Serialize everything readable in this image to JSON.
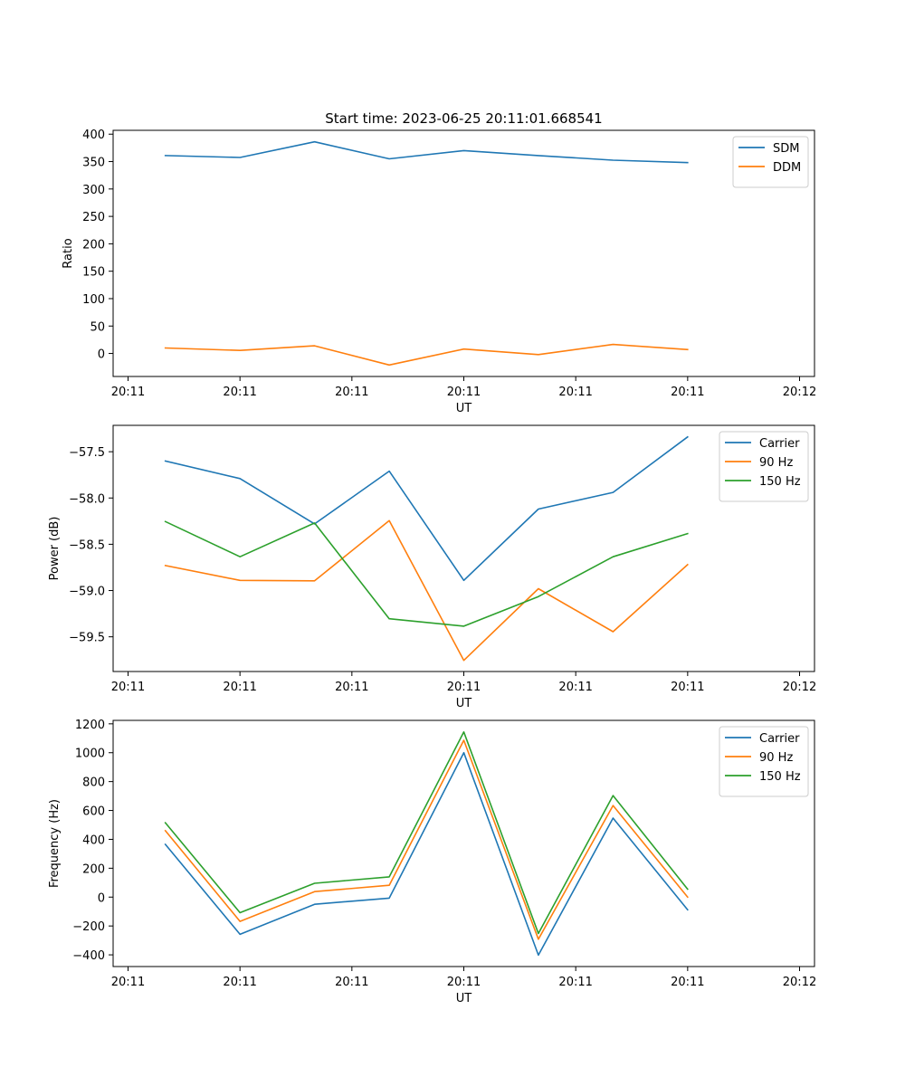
{
  "figure": {
    "title": "Start time: 2023-06-25 20:11:01.668541"
  },
  "chart_data": [
    {
      "type": "line",
      "xlabel": "UT",
      "ylabel": "Ratio",
      "x_tick_labels": [
        "20:11",
        "20:11",
        "20:11",
        "20:11",
        "20:11",
        "20:11",
        "20:12"
      ],
      "y_ticks": [
        0,
        50,
        100,
        150,
        200,
        250,
        300,
        350,
        400
      ],
      "ylim": [
        -42,
        407
      ],
      "xlim": [
        -0.2,
        9.2
      ],
      "x": [
        0.5,
        1.5,
        2.5,
        3.5,
        4.5,
        5.5,
        6.5,
        7.5
      ],
      "legend_position": "top-right",
      "series": [
        {
          "name": "SDM",
          "color": "#1f77b4",
          "values": [
            361,
            357.5,
            386,
            355,
            370,
            361,
            352.5,
            348
          ]
        },
        {
          "name": "DDM",
          "color": "#ff7f0e",
          "values": [
            10,
            5.5,
            14,
            -21,
            8,
            -2,
            16.5,
            7
          ]
        }
      ]
    },
    {
      "type": "line",
      "xlabel": "UT",
      "ylabel": "Power (dB)",
      "x_tick_labels": [
        "20:11",
        "20:11",
        "20:11",
        "20:11",
        "20:11",
        "20:11",
        "20:12"
      ],
      "y_ticks": [
        -59.5,
        -59.0,
        -58.5,
        -58.0,
        -57.5
      ],
      "y_tick_labels": [
        "−59.5",
        "−59.0",
        "−58.5",
        "−58.0",
        "−57.5"
      ],
      "ylim": [
        -59.875,
        -57.215
      ],
      "xlim": [
        -0.2,
        9.2
      ],
      "x": [
        0.5,
        1.5,
        2.5,
        3.5,
        4.5,
        5.5,
        6.5,
        7.5
      ],
      "legend_position": "top-right",
      "series": [
        {
          "name": "Carrier",
          "color": "#1f77b4",
          "values": [
            -57.6,
            -57.79,
            -58.28,
            -57.71,
            -58.89,
            -58.12,
            -57.94,
            -57.34
          ]
        },
        {
          "name": "90 Hz",
          "color": "#ff7f0e",
          "values": [
            -58.73,
            -58.89,
            -58.895,
            -58.245,
            -59.755,
            -58.98,
            -59.445,
            -58.72
          ]
        },
        {
          "name": "150 Hz",
          "color": "#2ca02c",
          "values": [
            -58.255,
            -58.635,
            -58.27,
            -59.305,
            -59.385,
            -59.065,
            -58.635,
            -58.385
          ]
        }
      ]
    },
    {
      "type": "line",
      "xlabel": "UT",
      "ylabel": "Frequency (Hz)",
      "x_tick_labels": [
        "20:11",
        "20:11",
        "20:11",
        "20:11",
        "20:11",
        "20:11",
        "20:12"
      ],
      "y_ticks": [
        -400,
        -200,
        0,
        200,
        400,
        600,
        800,
        1000,
        1200
      ],
      "y_tick_labels": [
        "−400",
        "−200",
        "0",
        "200",
        "400",
        "600",
        "800",
        "1000",
        "1200"
      ],
      "ylim": [
        -481,
        1224
      ],
      "xlim": [
        -0.2,
        9.2
      ],
      "x": [
        0.5,
        1.5,
        2.5,
        3.5,
        4.5,
        5.5,
        6.5,
        7.5
      ],
      "legend_position": "top-right",
      "series": [
        {
          "name": "Carrier",
          "color": "#1f77b4",
          "values": [
            365,
            -258,
            -50,
            -7,
            1000,
            -402,
            547,
            -88
          ]
        },
        {
          "name": "90 Hz",
          "color": "#ff7f0e",
          "values": [
            460,
            -168,
            38,
            82,
            1086,
            -292,
            634,
            0
          ]
        },
        {
          "name": "150 Hz",
          "color": "#2ca02c",
          "values": [
            515,
            -108,
            96,
            140,
            1144,
            -252,
            703,
            55
          ]
        }
      ]
    }
  ]
}
